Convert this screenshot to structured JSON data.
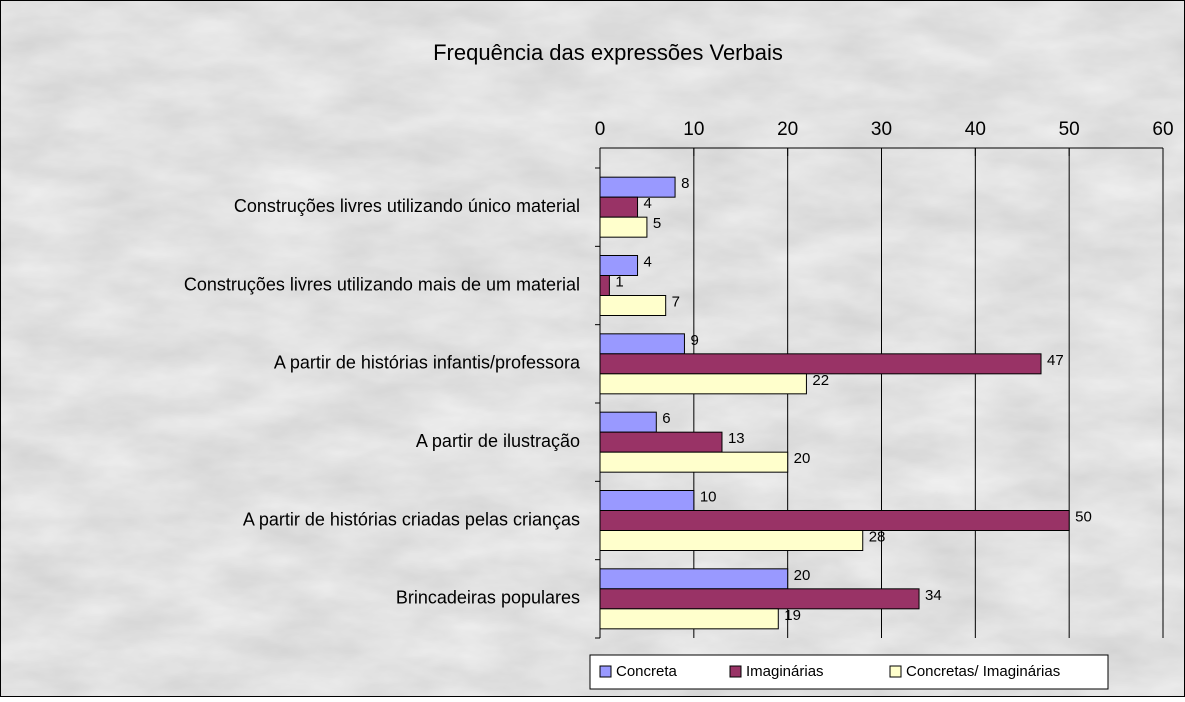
{
  "chart_data": {
    "type": "bar",
    "orientation": "horizontal",
    "title": "Frequência das expressões Verbais",
    "categories": [
      "Construções livres utilizando único material",
      "Construções livres utilizando mais de um material",
      "A partir de histórias  infantis/professora",
      "A partir de ilustração",
      "A partir de histórias criadas pelas crianças",
      "Brincadeiras populares"
    ],
    "series": [
      {
        "name": "Concreta",
        "color": "#9999ff",
        "values": [
          8,
          4,
          9,
          6,
          10,
          20
        ]
      },
      {
        "name": "Imaginárias",
        "color": "#993366",
        "values": [
          4,
          1,
          47,
          13,
          50,
          34
        ]
      },
      {
        "name": "Concretas/ Imaginárias",
        "color": "#ffffcc",
        "values": [
          5,
          7,
          22,
          20,
          28,
          19
        ]
      }
    ],
    "xlim": [
      0,
      60
    ],
    "xticks": [
      0,
      10,
      20,
      30,
      40,
      50,
      60
    ],
    "grid": true,
    "legend": "bottom"
  }
}
